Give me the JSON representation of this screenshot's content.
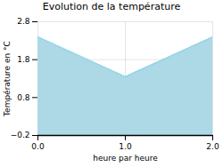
{
  "chart_data": {
    "type": "area",
    "title": "Evolution de la température",
    "x_label": "heure par heure",
    "y_label": "Température en °C",
    "x": [
      0,
      1,
      2
    ],
    "series": [
      {
        "type": "area",
        "color": "#add8e6",
        "values": [
          2.4,
          1.35,
          2.4
        ]
      },
      {
        "type": "line",
        "color": "#88d4e8",
        "line_style": "dotted",
        "values": [
          2.4,
          1.35,
          2.4
        ]
      }
    ],
    "xlim": [
      0,
      2
    ],
    "xticks": [
      0,
      1,
      2
    ],
    "ylim": [
      -0.2,
      2.8
    ],
    "yticks": [
      -0.2,
      0.8,
      1.8,
      2.8
    ],
    "grid": true
  }
}
